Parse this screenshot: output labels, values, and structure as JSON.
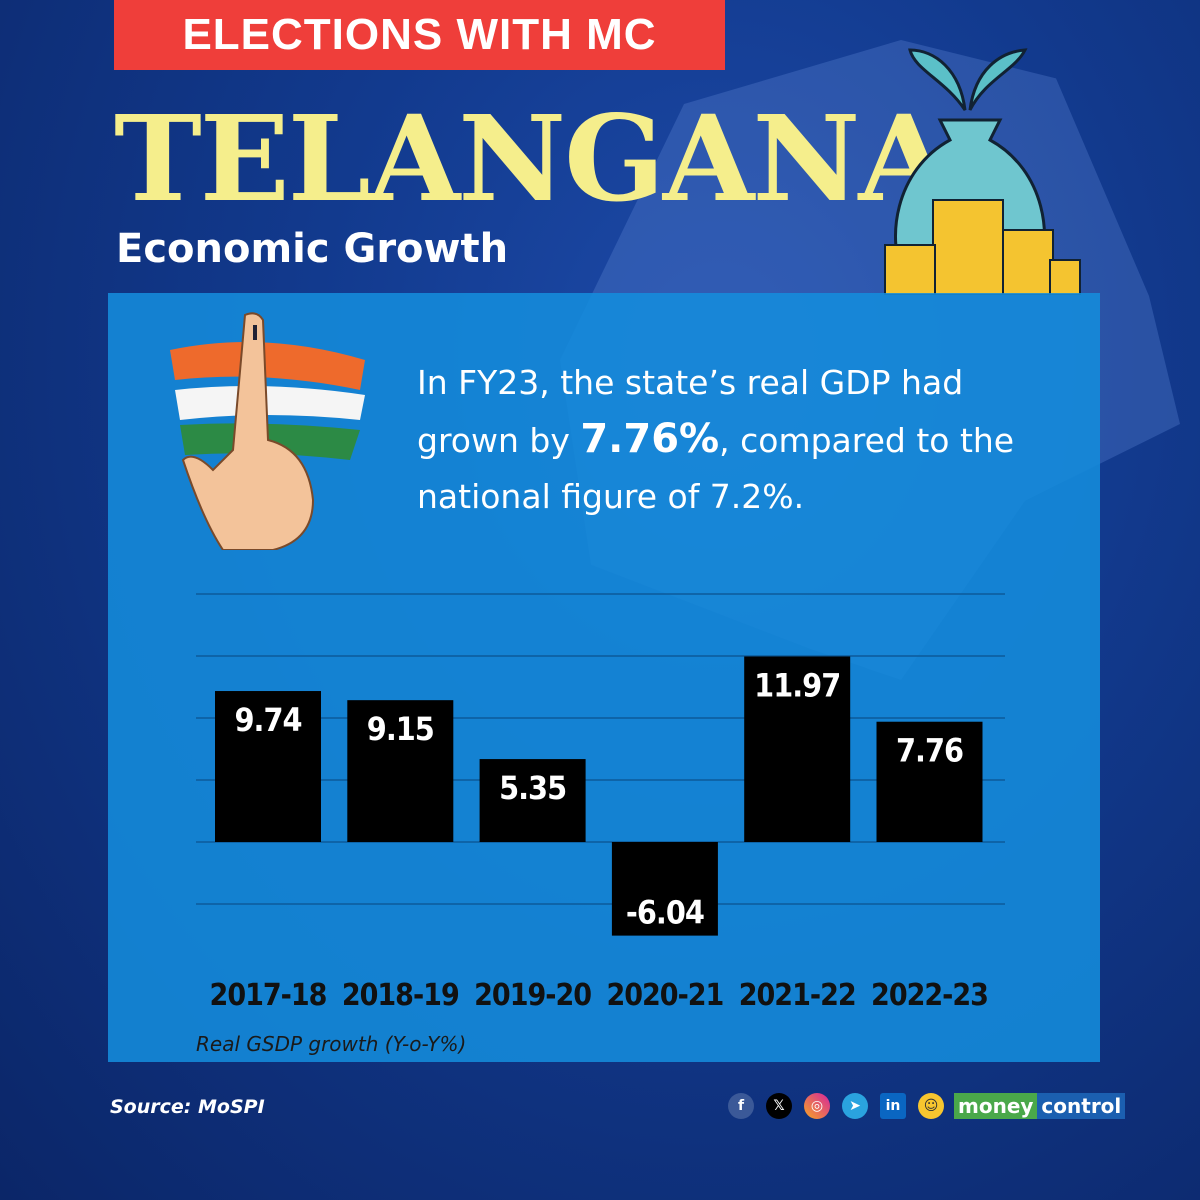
{
  "banner": "ELECTIONS WITH MC",
  "title": "TELANGANA",
  "subtitle": "Economic Growth",
  "lead": {
    "part1": "In FY23, the state’s real GDP had grown by ",
    "highlight": "7.76%",
    "part2": ", compared to the national figure of 7.2%."
  },
  "chart_data": {
    "type": "bar",
    "categories": [
      "2017-18",
      "2018-19",
      "2019-20",
      "2020-21",
      "2021-22",
      "2022-23"
    ],
    "values": [
      9.74,
      9.15,
      5.35,
      -6.04,
      11.97,
      7.76
    ],
    "labels": [
      "9.74",
      "9.15",
      "5.35",
      "-6.04",
      "11.97",
      "7.76"
    ],
    "xlabel": "Real GSDP growth (Y-o-Y%)",
    "ylim": [
      -8,
      16
    ],
    "gridlines": [
      -4,
      0,
      4,
      8,
      12,
      16
    ],
    "grid": true,
    "bar_color": "#000000"
  },
  "source": "Source: MoSPI",
  "social": [
    "facebook-icon",
    "x-icon",
    "instagram-icon",
    "telegram-icon",
    "linkedin-icon",
    "snapchat-icon"
  ],
  "brand": {
    "part1": "money",
    "part2": "control"
  },
  "colors": {
    "banner": "#ef3e3a",
    "title": "#f5ee8c",
    "panel": "#148cdc"
  }
}
